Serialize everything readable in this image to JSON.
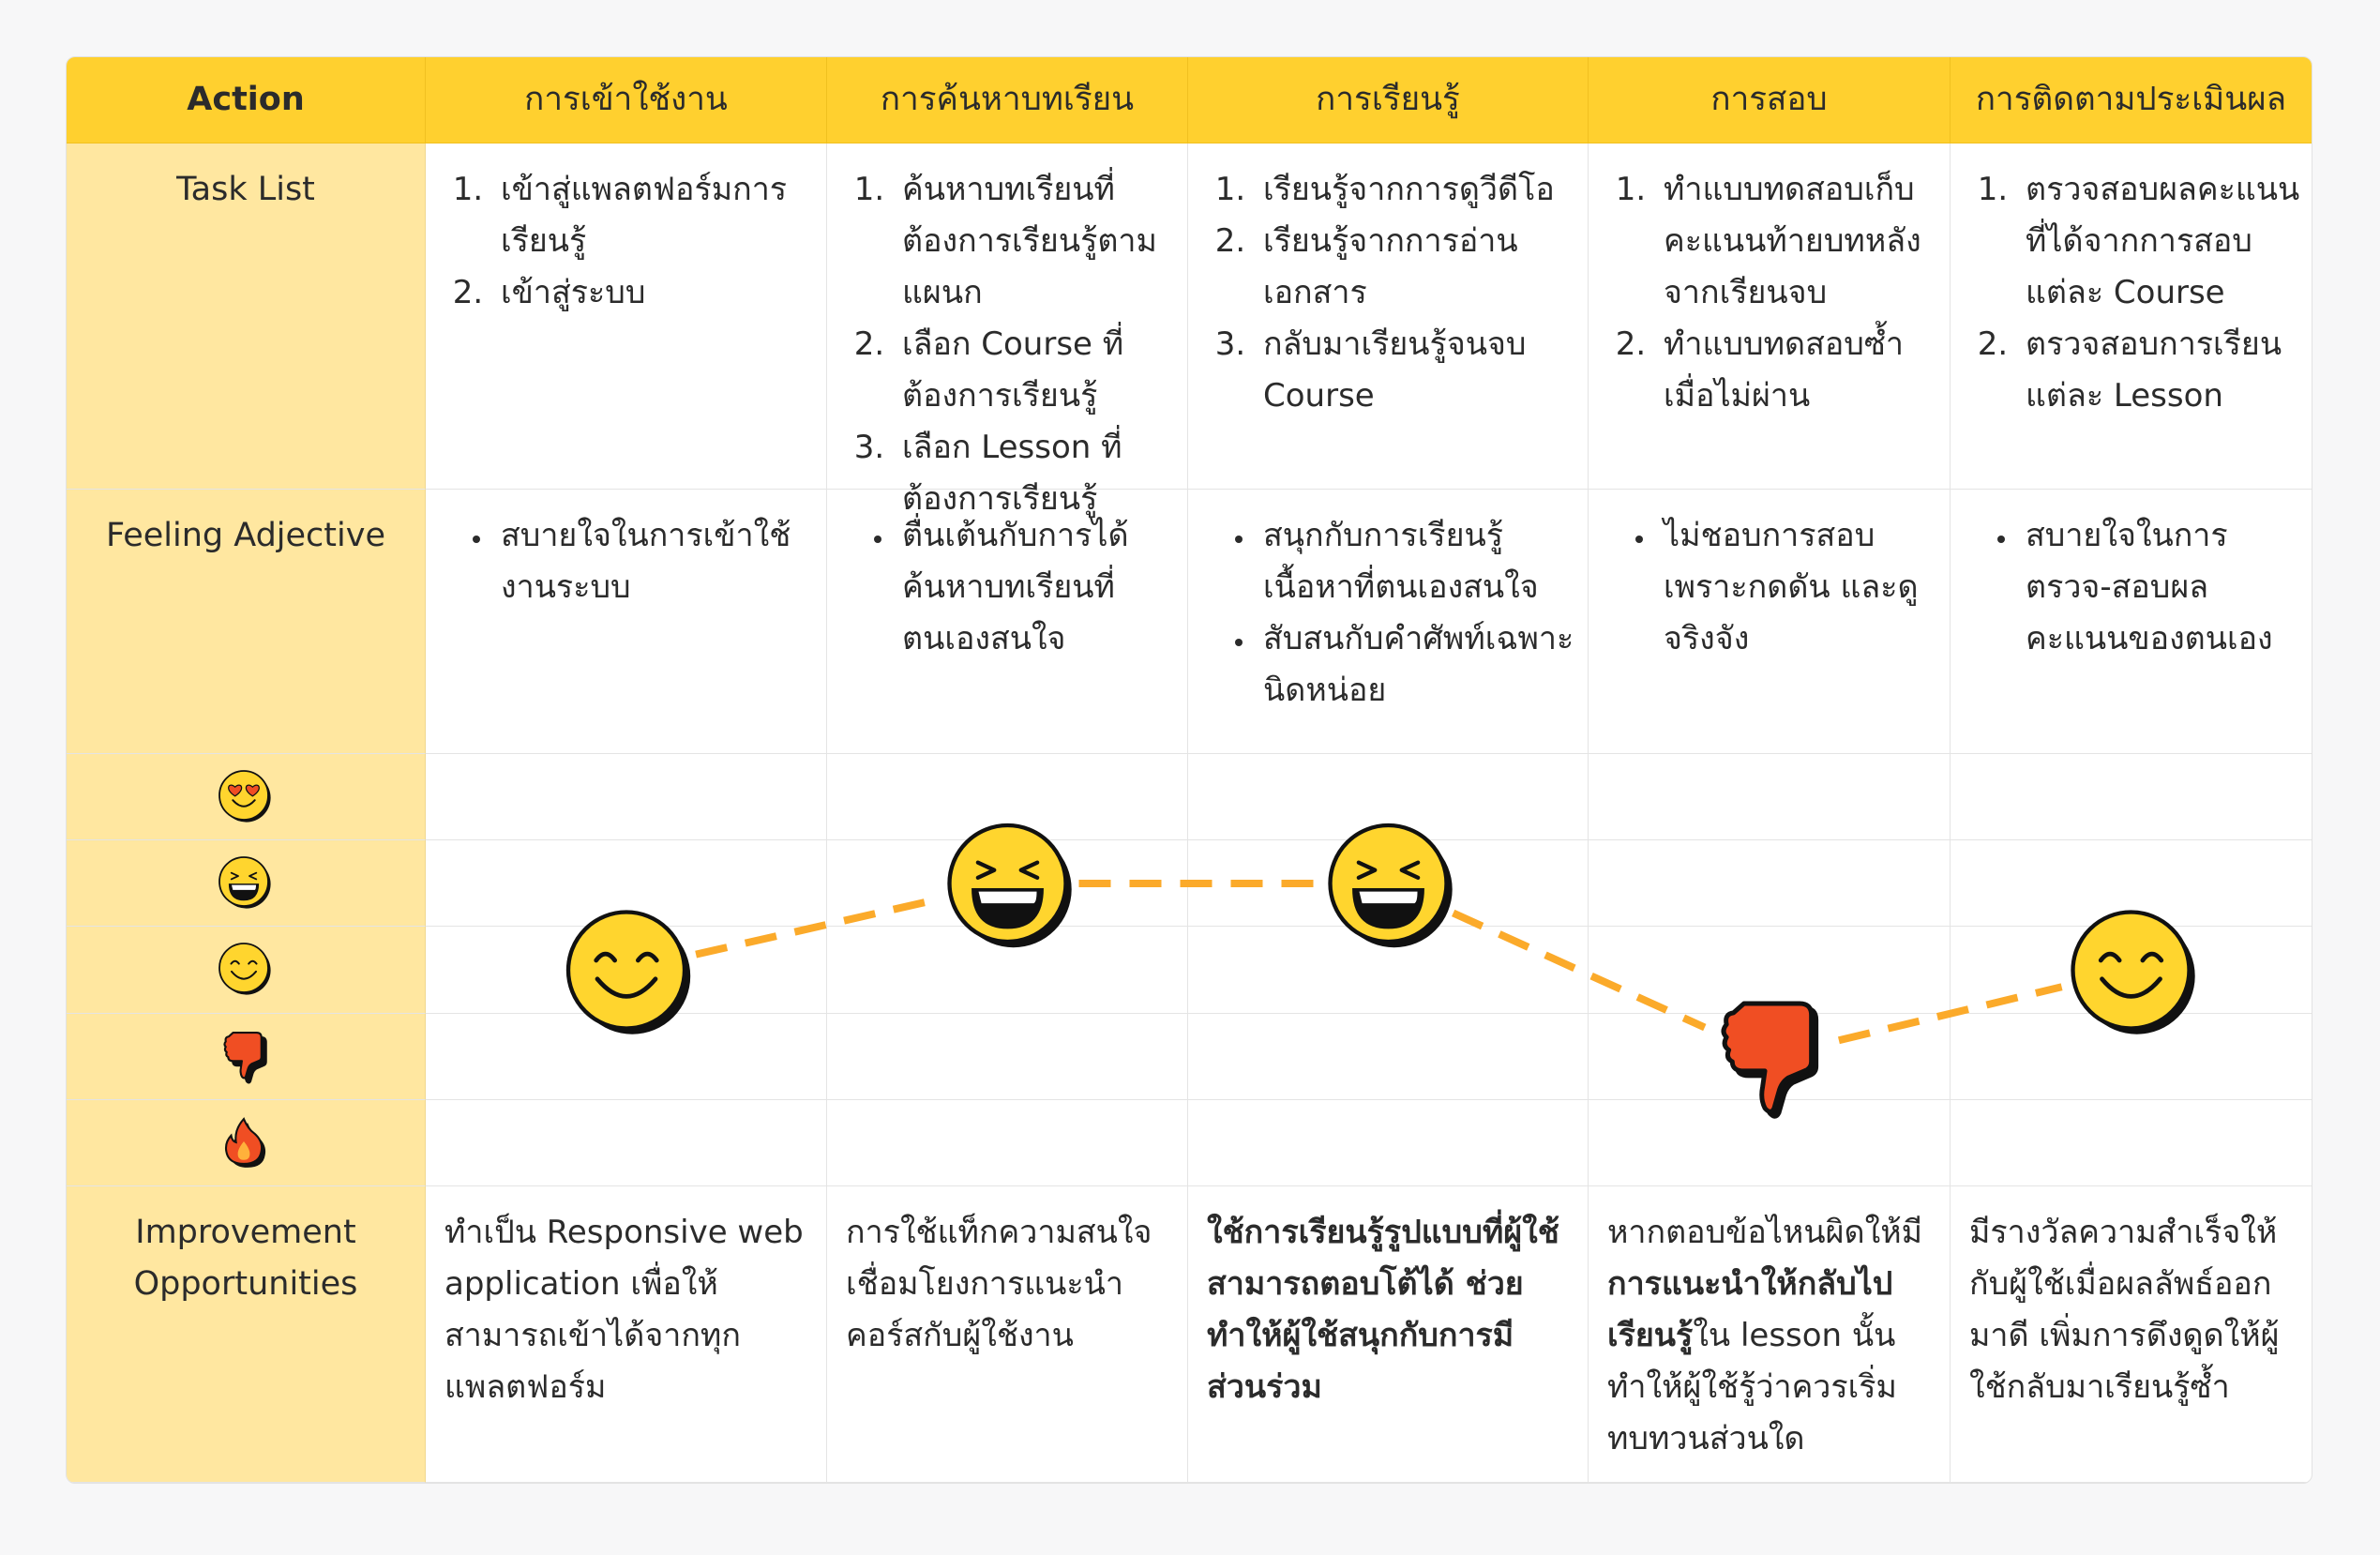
{
  "header": {
    "action_label": "Action",
    "stages": [
      "การเข้าใช้งาน",
      "การค้นหาบทเรียน",
      "การเรียนรู้",
      "การสอบ",
      "การติดตามประเมินผล"
    ]
  },
  "rows": {
    "task_list_label": "Task List",
    "feeling_label": "Feeling Adjective",
    "improvement_label": "Improvement Opportunities"
  },
  "task_list": [
    [
      "เข้าสู่แพลตฟอร์มการเรียนรู้",
      "เข้าสู่ระบบ"
    ],
    [
      "ค้นหาบทเรียนที่ต้องการเรียนรู้ตามแผนก",
      "เลือก Course ที่ต้องการเรียนรู้",
      "เลือก Lesson ที่ต้องการเรียนรู้"
    ],
    [
      "เรียนรู้จากการดูวีดีโอ",
      "เรียนรู้จากการอ่านเอกสาร",
      "กลับมาเรียนรู้จนจบ Course"
    ],
    [
      "ทำแบบทดสอบเก็บคะแนนท้ายบทหลังจากเรียนจบ",
      "ทำแบบทดสอบซ้ำเมื่อไม่ผ่าน"
    ],
    [
      "ตรวจสอบผลคะแนนที่ได้จากการสอบแต่ละ Course",
      "ตรวจสอบการเรียนแต่ละ Lesson"
    ]
  ],
  "feelings": [
    [
      "สบายใจในการเข้าใช้งานระบบ"
    ],
    [
      "ตื่นเต้นกับการได้ค้นหาบทเรียนที่ตนเองสนใจ"
    ],
    [
      "สนุกกับการเรียนรู้เนื้อหาที่ตนเองสนใจ",
      "สับสนกับคำศัพท์เฉพาะนิดหน่อย"
    ],
    [
      "ไม่ชอบการสอบเพราะกดดัน และดูจริงจัง"
    ],
    [
      "สบายใจในการตรวจ-สอบผลคะแนนของตนเอง"
    ]
  ],
  "improvements": [
    [
      {
        "t": "ทำเป็น Responsive web application เพื่อให้สามารถเข้าได้จากทุกแพลตฟอร์ม",
        "b": false
      }
    ],
    [
      {
        "t": "การใช้แท็กความสนใจเชื่อมโยงการแนะนำคอร์สกับผู้ใช้งาน",
        "b": false
      }
    ],
    [
      {
        "t": "ใช้การเรียนรู้รูปแบบที่ผู้ใช้สามารถตอบโต้ได้ ช่วยทำให้ผู้ใช้สนุกกับการมีส่วนร่วม",
        "b": true
      }
    ],
    [
      {
        "t": "หากตอบข้อไหนผิดให้มี ",
        "b": false
      },
      {
        "t": "การแนะนำให้กลับไปเรียนรู้",
        "b": true
      },
      {
        "t": "ใน lesson นั้น ทำให้ผู้ใช้รู้ว่าควรเริ่มทบทวนส่วนใด",
        "b": false
      }
    ],
    [
      {
        "t": "มีรางวัลความสำเร็จให้กับผู้ใช้เมื่อผลลัพธ์ออกมาดี เพิ่มการดึงดูดให้ผู้ใช้กลับมาเรียนรู้ซ้ำ",
        "b": false
      }
    ]
  ],
  "emotion_scale": [
    "heart-eyes",
    "laughing",
    "smiling",
    "thumbs-down",
    "fire"
  ],
  "journey_emotions": [
    "smiling",
    "laughing",
    "laughing",
    "thumbs-down",
    "smiling"
  ],
  "colors": {
    "header": "#FFD02F",
    "label_column": "#FFE7A0",
    "face": "#FFD52E",
    "curve": "#FBAA2A",
    "negative": "#F04E23"
  }
}
